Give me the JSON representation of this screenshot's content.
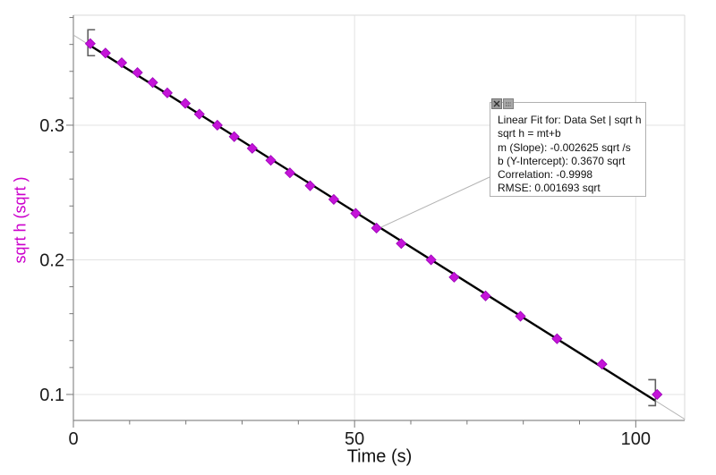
{
  "chart_data": {
    "type": "scatter",
    "title": "",
    "xlabel": "Time (s)",
    "ylabel": "sqrt h (sqrt )",
    "xlim": [
      0,
      108.7
    ],
    "ylim": [
      0.0807,
      0.3817
    ],
    "x_major_ticks": [
      0,
      50,
      100
    ],
    "x_tick_labels": [
      "0",
      "50",
      "100"
    ],
    "x_minor_tick_step": 10,
    "y_major_ticks": [
      0.1,
      0.2,
      0.3
    ],
    "y_tick_labels": [
      "0.1",
      "0.2",
      "0.3"
    ],
    "y_minor_tick_step": 0.02,
    "grid": true,
    "legend": "none",
    "series": [
      {
        "name": "sqrt h",
        "marker": "diamond",
        "marker_size": 11,
        "color": "#c414d8",
        "points": [
          [
            3.0,
            0.3606
          ],
          [
            5.7,
            0.3536
          ],
          [
            8.6,
            0.3464
          ],
          [
            11.4,
            0.3391
          ],
          [
            14.1,
            0.3317
          ],
          [
            16.7,
            0.324
          ],
          [
            19.9,
            0.3162
          ],
          [
            22.4,
            0.3082
          ],
          [
            25.6,
            0.3
          ],
          [
            28.6,
            0.2915
          ],
          [
            31.8,
            0.2828
          ],
          [
            35.1,
            0.2739
          ],
          [
            38.5,
            0.2646
          ],
          [
            42.1,
            0.255
          ],
          [
            46.3,
            0.2449
          ],
          [
            50.2,
            0.2345
          ],
          [
            53.9,
            0.2236
          ],
          [
            58.3,
            0.2121
          ],
          [
            63.6,
            0.2
          ],
          [
            67.7,
            0.1871
          ],
          [
            73.3,
            0.1732
          ],
          [
            79.5,
            0.1581
          ],
          [
            86.0,
            0.1414
          ],
          [
            94.0,
            0.1225
          ],
          [
            103.8,
            0.1
          ]
        ]
      }
    ],
    "linear_fit": {
      "slope": -0.002625,
      "intercept": 0.367,
      "bracket_range": [
        2.9,
        103.5
      ],
      "line_color": "#000000",
      "extension_color": "#b3b3b3"
    },
    "callout": {
      "point_index": 16
    },
    "colors": {
      "axis": "#8c8c8c",
      "border": "#d9d9d9",
      "grid": "#e3e3e3",
      "tick": "#777777",
      "tick_label": "#1a1a1a",
      "ylabel": "#cc00cc",
      "bracket": "#5f5f5f",
      "callout": "#b3b3b3"
    }
  },
  "fit_box": {
    "lines": [
      "Linear Fit for: Data Set | sqrt h",
      "sqrt h = mt+b",
      "m (Slope): -0.002625 sqrt /s",
      "b (Y-Intercept): 0.3670 sqrt",
      "Correlation: -0.9998",
      "RMSE: 0.001693 sqrt"
    ]
  }
}
